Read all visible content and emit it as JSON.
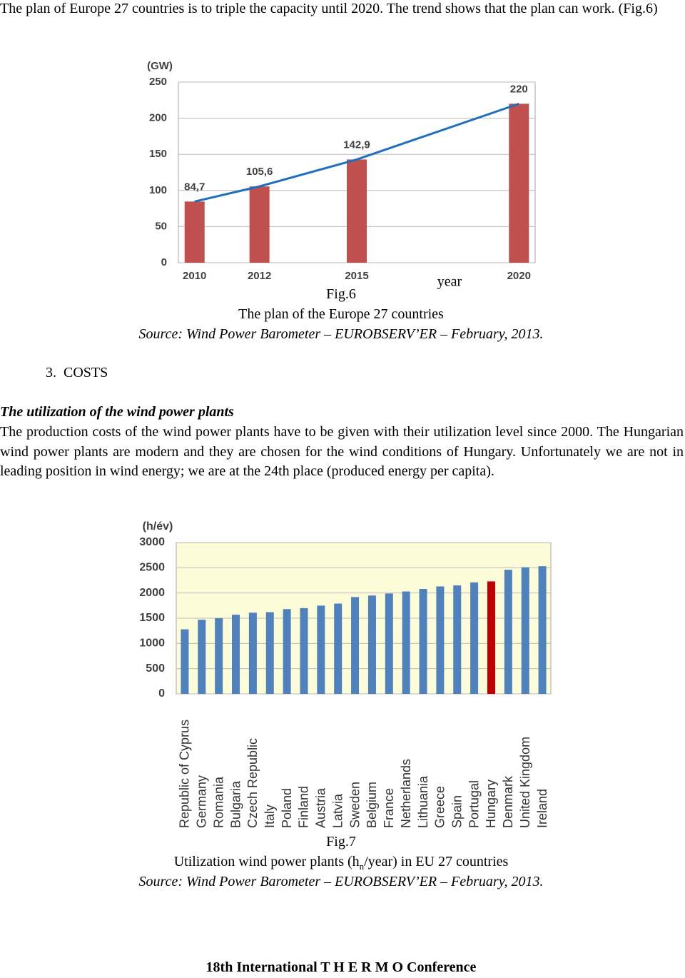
{
  "intro": "The plan of Europe 27 countries is to triple the capacity until 2020. The trend shows that the plan can work. (Fig.6)",
  "chart_data": [
    {
      "type": "bar",
      "y_unit": "(GW)",
      "x_label": "year",
      "x": [
        2010,
        2012,
        2015,
        2020
      ],
      "xlim": [
        2009.5,
        2020.5
      ],
      "values": [
        84.7,
        105.6,
        142.9,
        220
      ],
      "value_labels": [
        "84,7",
        "105,6",
        "142,9",
        "220"
      ],
      "ylim": [
        0,
        250
      ],
      "yticks": [
        0,
        50,
        100,
        150,
        200,
        250
      ],
      "color": "#c0504d",
      "trend_line": true,
      "line_color": "#1f6fbf",
      "grid": true,
      "plot_background": "#ffffff"
    },
    {
      "type": "bar",
      "y_unit": "(h/év)",
      "categories": [
        "Republic of Cyprus",
        "Germany",
        "Romania",
        "Bulgaria",
        "Czech Republic",
        "Italy",
        "Poland",
        "Finland",
        "Austria",
        "Latvia",
        "Sweden",
        "Belgium",
        "France",
        "Netherlands",
        "Lithuania",
        "Greece",
        "Spain",
        "Portugal",
        "Hungary",
        "Denmark",
        "United Kingdom",
        "Ireland"
      ],
      "values": [
        1280,
        1470,
        1500,
        1570,
        1610,
        1620,
        1680,
        1700,
        1750,
        1790,
        1920,
        1950,
        1990,
        2030,
        2080,
        2130,
        2150,
        2210,
        2230,
        2460,
        2510,
        2530
      ],
      "colors": [
        "#4f81bd",
        "#4f81bd",
        "#4f81bd",
        "#4f81bd",
        "#4f81bd",
        "#4f81bd",
        "#4f81bd",
        "#4f81bd",
        "#4f81bd",
        "#4f81bd",
        "#4f81bd",
        "#4f81bd",
        "#4f81bd",
        "#4f81bd",
        "#4f81bd",
        "#4f81bd",
        "#4f81bd",
        "#4f81bd",
        "#c00000",
        "#4f81bd",
        "#4f81bd",
        "#4f81bd"
      ],
      "ylim": [
        0,
        3000
      ],
      "yticks": [
        0,
        500,
        1000,
        1500,
        2000,
        2500,
        3000
      ],
      "grid": true,
      "plot_background": "#fdfcd8"
    }
  ],
  "fig6_caption": {
    "label": "Fig.6",
    "title": "The plan of the Europe 27 countries",
    "source": "Source: Wind Power  Barometer – EUROBSERV’ER – February, 2013."
  },
  "section": {
    "heading": "3.  COSTS",
    "subheading": "The utilization of the wind power plants",
    "paragraph": "The production costs of the wind power plants have to be given with their utilization level since 2000. The Hungarian wind power plants are modern and they are chosen for the wind conditions of Hungary. Unfortunately we are not in leading position in wind energy; we are at the 24th place (produced energy per capita)."
  },
  "fig7_caption": {
    "label": "Fig.7",
    "title_before": "Utilization wind power plants (h",
    "title_sub": "n",
    "title_after": "/year) in EU 27 countries",
    "source": "Source: Wind Power Barometer – EUROBSERV’ER – February, 2013."
  },
  "footer": "18th International T H E R M O Conference"
}
